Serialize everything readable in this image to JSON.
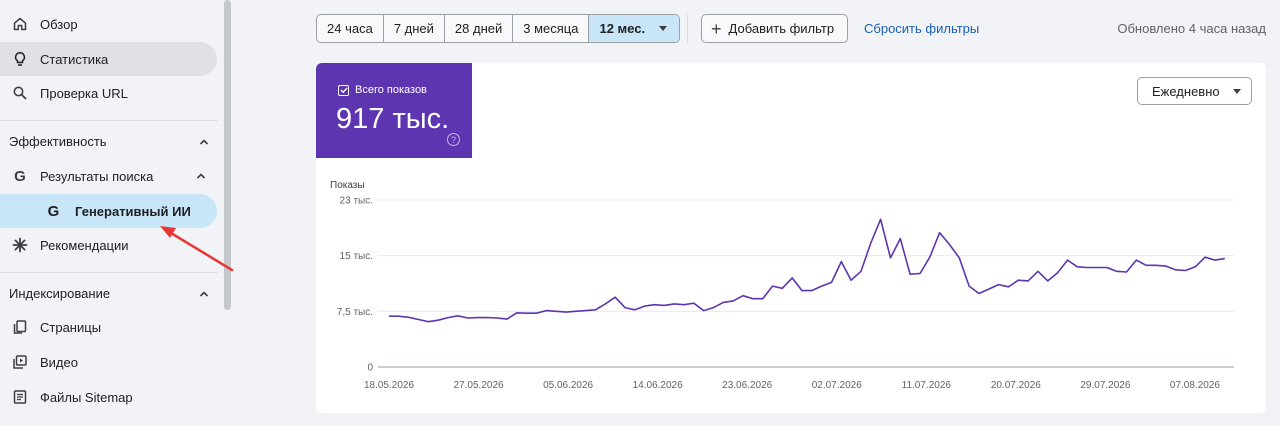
{
  "sidebar": {
    "overview": "Обзор",
    "stats": "Статистика",
    "url_check": "Проверка URL",
    "performance_section": "Эффективность",
    "search_results": "Результаты поиска",
    "generative_ai": "Генеративный ИИ",
    "recommendations": "Рекомендации",
    "indexing_section": "Индексирование",
    "pages": "Страницы",
    "video": "Видео",
    "sitemaps": "Файлы Sitemap"
  },
  "toolbar": {
    "ranges": [
      "24 часа",
      "7 дней",
      "28 дней",
      "3 месяца",
      "12 мес."
    ],
    "selected_range": "12 мес.",
    "add_filter": "Добавить фильтр",
    "reset_filters": "Сбросить фильтры",
    "updated": "Обновлено 4 часа назад"
  },
  "metric": {
    "label": "Всего показов",
    "value": "917 тыс.",
    "help": "?",
    "color": "#5e35b1"
  },
  "granularity": "Ежедневно",
  "chart_data": {
    "type": "line",
    "ylabel": "Показы",
    "y_ticks": [
      "23 тыс.",
      "15 тыс.",
      "7,5 тыс.",
      "0"
    ],
    "y_tick_values": [
      22500,
      15000,
      7500,
      0
    ],
    "ylim": [
      0,
      22500
    ],
    "x_tick_labels": [
      "18.05.2026",
      "27.05.2026",
      "05.06.2026",
      "14.06.2026",
      "23.06.2026",
      "02.07.2026",
      "11.07.2026",
      "20.07.2026",
      "29.07.2026",
      "07.08.2026"
    ],
    "x_start": "2026-05-18",
    "x_end": "2026-08-10",
    "grid": true,
    "series": [
      {
        "color": "#5e35b1",
        "values": [
          6850,
          6850,
          6700,
          6400,
          6100,
          6300,
          6650,
          6900,
          6600,
          6650,
          6650,
          6600,
          6450,
          7300,
          7250,
          7250,
          7600,
          7500,
          7400,
          7500,
          7600,
          7700,
          8500,
          9400,
          8000,
          7700,
          8200,
          8400,
          8300,
          8500,
          8400,
          8600,
          7600,
          8000,
          8700,
          8900,
          9600,
          9200,
          9200,
          10900,
          10600,
          12000,
          10300,
          10300,
          10900,
          11400,
          14200,
          11700,
          12900,
          16700,
          19900,
          14700,
          17300,
          12500,
          12600,
          14800,
          18100,
          16500,
          14700,
          10900,
          9900,
          10500,
          11100,
          10800,
          11700,
          11600,
          12900,
          11600,
          12700,
          14400,
          13500,
          13400,
          13400,
          13400,
          12900,
          12800,
          14400,
          13700,
          13700,
          13600,
          13100,
          13000,
          13500,
          14800,
          14400,
          14600
        ]
      }
    ]
  }
}
